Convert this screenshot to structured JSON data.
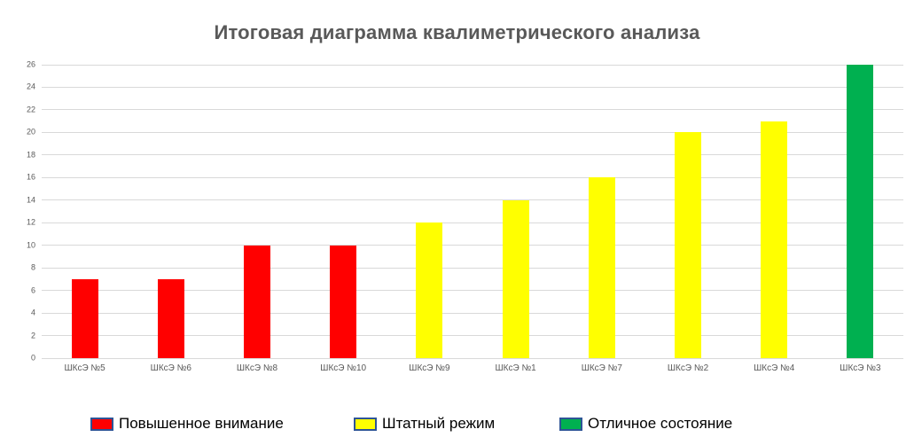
{
  "title": "Итоговая диаграмма квалиметрического анализа",
  "colors": {
    "background": "#ffffff",
    "gridline": "#d9d9d9",
    "axis_text": "#595959",
    "title_text": "#595959",
    "legend_text": "#000000",
    "legend_swatch_border": "#2e5496",
    "status_red": "#ff0000",
    "status_yellow": "#ffff00",
    "status_green": "#00b050"
  },
  "chart_data": {
    "type": "bar",
    "title": "Итоговая диаграмма квалиметрического анализа",
    "categories": [
      "ШКсЭ №5",
      "ШКсЭ №6",
      "ШКсЭ №8",
      "ШКсЭ №10",
      "ШКсЭ №9",
      "ШКсЭ №1",
      "ШКсЭ №7",
      "ШКсЭ №2",
      "ШКсЭ №4",
      "ШКсЭ №3"
    ],
    "values": [
      7,
      7,
      10,
      10,
      12,
      14,
      16,
      20,
      21,
      26
    ],
    "bar_colors": [
      "#ff0000",
      "#ff0000",
      "#ff0000",
      "#ff0000",
      "#ffff00",
      "#ffff00",
      "#ffff00",
      "#ffff00",
      "#ffff00",
      "#00b050"
    ],
    "xlabel": "",
    "ylabel": "",
    "ylim": [
      0,
      26
    ],
    "ytick_step": 2,
    "grid": true,
    "legend_position": "bottom",
    "legend": [
      {
        "label": "Повышенное внимание",
        "color": "#ff0000",
        "border": "#2e5496"
      },
      {
        "label": "Штатный режим",
        "color": "#ffff00",
        "border": "#2e5496"
      },
      {
        "label": "Отличное состояние",
        "color": "#00b050",
        "border": "#2e5496"
      }
    ]
  }
}
